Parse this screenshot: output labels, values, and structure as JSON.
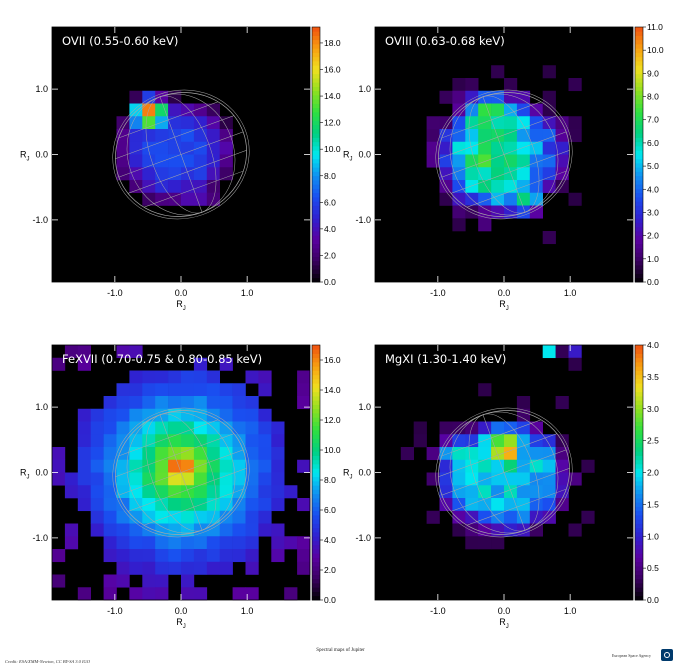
{
  "page": {
    "caption": "Spectral maps of Jupiter",
    "credit": "Credit: ESA/XMM-Newton, CC BY-SA 3.0 IGO",
    "agency": "European Space Agency"
  },
  "colors": {
    "colormap": [
      "#000000",
      "#3a0060",
      "#5a00a0",
      "#3020d0",
      "#1a4ef0",
      "#1090f0",
      "#00e8f0",
      "#00d080",
      "#30e040",
      "#90e020",
      "#f0e020",
      "#f8a010",
      "#f05010"
    ],
    "ring": "#a8a8a8",
    "label": "#ffffff"
  },
  "chart_data": [
    {
      "type": "heatmap",
      "title": "OVII (0.55-0.60 keV)",
      "xlabel": "R",
      "xlabel_sub": "J",
      "ylabel": "R",
      "ylabel_sub": "J",
      "xticks": [
        -1.0,
        0.0,
        1.0
      ],
      "yticks": [
        1.0,
        0.0,
        -1.0
      ],
      "xlim": [
        -1.95,
        1.95
      ],
      "ylim": [
        -1.95,
        1.95
      ],
      "colorbar_range": [
        0,
        19.2
      ],
      "colorbar_ticks": [
        "0.0",
        "2.0",
        "4.0",
        "6.0",
        "8.0",
        "10.0",
        "12.0",
        "14.0",
        "16.0",
        "18.0"
      ],
      "colorbar_tick_values": [
        0,
        2,
        4,
        6,
        8,
        10,
        12,
        14,
        16,
        18
      ],
      "grid_center": [
        -0.05,
        0.05
      ],
      "grid_blobs": [
        [
          -0.1,
          0.05,
          0.85,
          0.75,
          6.0,
          1.0,
          5
        ],
        [
          -0.5,
          0.65,
          0.25,
          0.22,
          12.0,
          1.0,
          3
        ],
        [
          -0.45,
          0.75,
          0.15,
          0.12,
          6.0,
          1.0,
          2
        ],
        [
          0.35,
          -0.7,
          0.3,
          0.15,
          2.0,
          1.0,
          4
        ]
      ],
      "noise": 0.5,
      "seed": 11
    },
    {
      "type": "heatmap",
      "title": "OVIII (0.63-0.68 keV)",
      "xlabel": "R",
      "xlabel_sub": "J",
      "ylabel": "R",
      "ylabel_sub": "J",
      "xticks": [
        -1.0,
        0.0,
        1.0
      ],
      "yticks": [
        1.0,
        0.0,
        -1.0
      ],
      "xlim": [
        -1.95,
        1.95
      ],
      "ylim": [
        -1.95,
        1.95
      ],
      "colorbar_range": [
        0,
        11
      ],
      "colorbar_ticks": [
        "0.0",
        "1.0",
        "2.0",
        "3.0",
        "4.0",
        "5.0",
        "6.0",
        "7.0",
        "8.0",
        "9.0",
        "10.0",
        "11.0"
      ],
      "colorbar_tick_values": [
        0,
        1,
        2,
        3,
        4,
        5,
        6,
        7,
        8,
        9,
        10,
        11
      ],
      "grid_center": [
        -0.05,
        0.0
      ],
      "grid_blobs": [
        [
          -0.05,
          0.0,
          0.95,
          0.95,
          4.5,
          2.0,
          6
        ],
        [
          -0.2,
          -0.05,
          0.55,
          0.6,
          2.5,
          2.0,
          2
        ],
        [
          -0.25,
          0.65,
          0.22,
          0.2,
          4.0,
          1.0,
          2
        ],
        [
          0.35,
          -0.75,
          0.2,
          0.15,
          2.5,
          1.0,
          3
        ]
      ],
      "noise": 0.8,
      "seed": 23
    },
    {
      "type": "heatmap",
      "title": "FeXVII (0.70-0.75 & 0.80-0.85 keV)",
      "xlabel": "R",
      "xlabel_sub": "J",
      "ylabel": "R",
      "ylabel_sub": "J",
      "xticks": [
        -1.0,
        0.0,
        1.0
      ],
      "yticks": [
        1.0,
        0.0,
        -1.0
      ],
      "xlim": [
        -1.95,
        1.95
      ],
      "ylim": [
        -1.95,
        1.95
      ],
      "colorbar_range": [
        0,
        17
      ],
      "colorbar_ticks": [
        "0.0",
        "2.0",
        "4.0",
        "6.0",
        "8.0",
        "10.0",
        "12.0",
        "14.0",
        "16.0"
      ],
      "colorbar_tick_values": [
        0,
        2,
        4,
        6,
        8,
        10,
        12,
        14,
        16
      ],
      "grid_center": [
        0.0,
        0.0
      ],
      "grid_blobs": [
        [
          0.0,
          0.05,
          1.25,
          1.25,
          15.5,
          2.0,
          1
        ],
        [
          0.0,
          0.1,
          0.16,
          0.1,
          3.0,
          1.0,
          2
        ]
      ],
      "noise": 0.4,
      "seed": 37
    },
    {
      "type": "heatmap",
      "title": "MgXI (1.30-1.40 keV)",
      "xlabel": "R",
      "xlabel_sub": "J",
      "ylabel": "R",
      "ylabel_sub": "J",
      "xticks": [
        -1.0,
        0.0,
        1.0
      ],
      "yticks": [
        1.0,
        0.0,
        -1.0
      ],
      "xlim": [
        -1.95,
        1.95
      ],
      "ylim": [
        -1.95,
        1.95
      ],
      "colorbar_range": [
        0,
        4
      ],
      "colorbar_ticks": [
        "0.0",
        "0.5",
        "1.0",
        "1.5",
        "2.0",
        "2.5",
        "3.0",
        "3.5",
        "4.0"
      ],
      "colorbar_tick_values": [
        0,
        0.5,
        1.0,
        1.5,
        2.0,
        2.5,
        3.0,
        3.5,
        4.0
      ],
      "grid_center": [
        0.0,
        0.0
      ],
      "grid_blobs": [
        [
          0.0,
          -0.05,
          0.95,
          0.85,
          1.9,
          1.0,
          6
        ],
        [
          0.0,
          0.35,
          0.22,
          0.22,
          1.6,
          1.0,
          3
        ],
        [
          -0.8,
          0.3,
          0.25,
          0.2,
          0.8,
          1.0,
          3
        ],
        [
          0.8,
          1.8,
          0.3,
          0.2,
          2.0,
          0.0,
          5
        ]
      ],
      "noise": 0.3,
      "seed": 53
    }
  ]
}
